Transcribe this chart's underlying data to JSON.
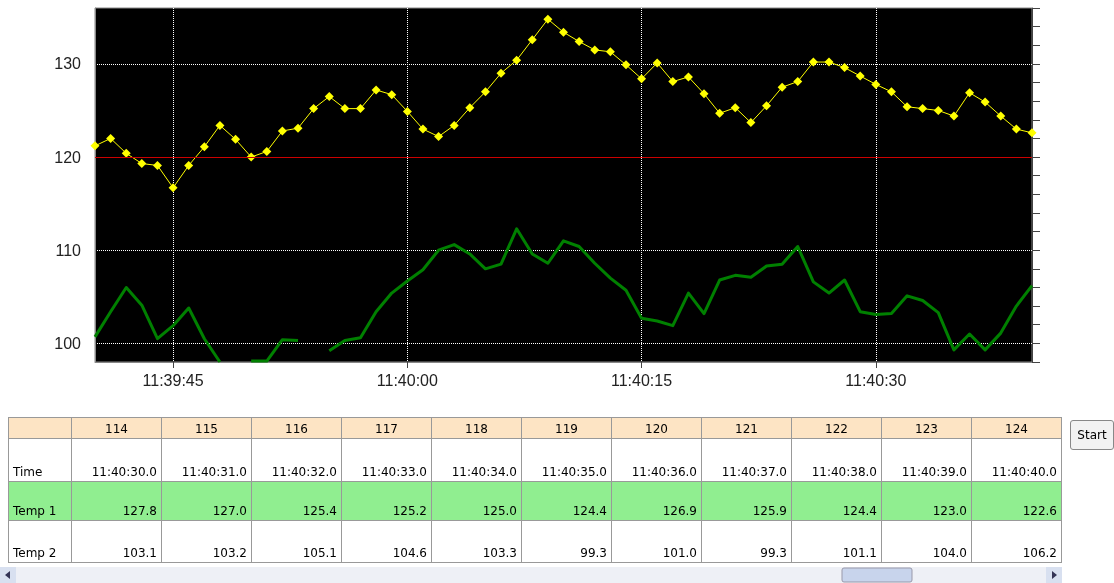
{
  "chart_data": {
    "type": "line",
    "xlim": [
      11.661111,
      11.677778
    ],
    "xticks": [
      {
        "value": 11.6625,
        "label": "11:39:45"
      },
      {
        "value": 11.666667,
        "label": "11:40:00"
      },
      {
        "value": 11.670833,
        "label": "11:40:15"
      },
      {
        "value": 11.675,
        "label": "11:40:30"
      }
    ],
    "ylim": [
      98,
      136
    ],
    "yticks": [
      {
        "value": 98,
        "label": null
      },
      100,
      {
        "value": 102,
        "label": null
      },
      {
        "value": 104,
        "label": null
      },
      {
        "value": 106,
        "label": null
      },
      {
        "value": 108,
        "label": null
      },
      110,
      {
        "value": 112,
        "label": null
      },
      {
        "value": 114,
        "label": null
      },
      {
        "value": 116,
        "label": null
      },
      {
        "value": 118,
        "label": null
      },
      120,
      {
        "value": 122,
        "label": null
      },
      {
        "value": 124,
        "label": null
      },
      {
        "value": 126,
        "label": null
      },
      {
        "value": 128,
        "label": null
      },
      130,
      {
        "value": 132,
        "label": null
      },
      {
        "value": 134,
        "label": null
      },
      {
        "value": 136,
        "label": null
      }
    ],
    "grid": true,
    "line_style": "solid",
    "x": [
      11.661111,
      11.661389,
      11.661667,
      11.661944,
      11.662222,
      11.6625,
      11.662778,
      11.663056,
      11.663333,
      11.663611,
      11.663889,
      11.664167,
      11.664444,
      11.664722,
      11.665,
      11.665278,
      11.665556,
      11.665833,
      11.666111,
      11.666389,
      11.666667,
      11.666944,
      11.667222,
      11.6675,
      11.667778,
      11.668056,
      11.668333,
      11.668611,
      11.668889,
      11.669167,
      11.669444,
      11.669722,
      11.67,
      11.670278,
      11.670556,
      11.670833,
      11.671111,
      11.671389,
      11.671667,
      11.671944,
      11.672222,
      11.6725,
      11.672778,
      11.673056,
      11.673333,
      11.673611,
      11.673889,
      11.674167,
      11.674444,
      11.674722,
      11.675,
      11.675278,
      11.675556,
      11.675833,
      11.676111,
      11.676389,
      11.676667,
      11.676944,
      11.677222,
      11.6775,
      11.677778
    ],
    "series": [
      {
        "color": "#ffff00",
        "marker": "diamond",
        "values": [
          121.2,
          122.0,
          120.4,
          119.3,
          119.1,
          116.7,
          119.1,
          121.1,
          123.4,
          121.9,
          120.0,
          120.6,
          122.8,
          123.1,
          125.2,
          126.5,
          125.2,
          125.2,
          127.2,
          126.7,
          124.9,
          123.0,
          122.2,
          123.4,
          125.3,
          127.0,
          129.0,
          130.4,
          132.6,
          134.8,
          133.4,
          132.4,
          131.5,
          131.3,
          129.9,
          128.4,
          130.1,
          128.1,
          128.6,
          126.8,
          124.7,
          125.3,
          123.7,
          125.5,
          127.5,
          128.1,
          130.2,
          130.2,
          129.6,
          128.7,
          127.8,
          127.0,
          125.4,
          125.2,
          125.0,
          124.4,
          126.9,
          125.9,
          124.4,
          123.0,
          122.6
        ]
      },
      {
        "color": "#008000",
        "marker": "none",
        "values": [
          100.7,
          103.4,
          106.0,
          104.1,
          100.5,
          101.9,
          103.8,
          100.5,
          98.0,
          null,
          98.1,
          98.1,
          100.4,
          100.3,
          null,
          99.2,
          100.3,
          100.6,
          103.4,
          105.4,
          106.7,
          107.9,
          110.0,
          110.6,
          109.6,
          108.0,
          108.5,
          112.3,
          109.6,
          108.6,
          111.0,
          110.4,
          108.6,
          107.0,
          105.7,
          102.7,
          102.4,
          101.9,
          105.4,
          103.2,
          106.8,
          107.3,
          107.1,
          108.3,
          108.5,
          110.4,
          106.6,
          105.4,
          106.8,
          103.4,
          103.1,
          103.2,
          105.1,
          104.6,
          103.3,
          99.3,
          101.0,
          99.3,
          101.1,
          104.0,
          106.2
        ]
      }
    ],
    "ref_lines": [
      {
        "axis": "y",
        "value": 120,
        "color": "#cc0000"
      }
    ],
    "annotations": [
      "114",
      "115",
      "116",
      "117",
      "118",
      "119",
      "120",
      "121",
      "122",
      "123",
      "124",
      "Time",
      "11:40:30.0",
      "11:40:31.0",
      "11:40:32.0",
      "11:40:33.0",
      "11:40:34.0",
      "11:40:35.0",
      "11:40:36.0",
      "11:40:37.0",
      "11:40:38.0",
      "11:40:39.0",
      "11:40:40.0",
      "Temp 1",
      "127.8",
      "127.0",
      "125.4",
      "125.2",
      "125.0",
      "124.4",
      "126.9",
      "125.9",
      "124.4",
      "123.0",
      "122.6",
      "Temp 2",
      "103.1",
      "103.2",
      "105.1",
      "104.6",
      "103.3",
      "99.3",
      "101.0",
      "99.3",
      "101.1",
      "104.0",
      "106.2",
      "Start"
    ]
  }
}
